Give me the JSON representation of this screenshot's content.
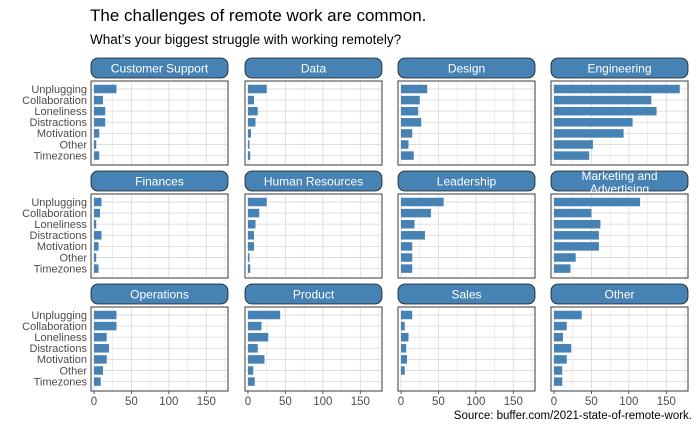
{
  "title": "The challenges of remote work are common.",
  "subtitle": "What’s your biggest struggle with working remotely?",
  "caption": "Source: buffer.com/2021-state-of-remote-work.",
  "colors": {
    "bar": "#4682b4",
    "strip": "#4682b4",
    "grid": "#dddddd"
  },
  "chart_data": {
    "type": "bar",
    "orientation": "horizontal",
    "categories": [
      "Unplugging",
      "Collaboration",
      "Loneliness",
      "Distractions",
      "Motivation",
      "Other",
      "Timezones"
    ],
    "xlim": [
      0,
      175
    ],
    "xticks": [
      0,
      50,
      100,
      150
    ],
    "grid": true,
    "panels": [
      {
        "name": "Customer Support",
        "values": [
          30,
          12,
          15,
          15,
          7,
          3,
          7
        ]
      },
      {
        "name": "Data",
        "values": [
          25,
          8,
          13,
          10,
          4,
          2,
          3
        ]
      },
      {
        "name": "Design",
        "values": [
          35,
          25,
          23,
          27,
          15,
          10,
          17
        ]
      },
      {
        "name": "Engineering",
        "values": [
          168,
          130,
          137,
          105,
          93,
          52,
          47
        ]
      },
      {
        "name": "Finances",
        "values": [
          10,
          8,
          3,
          10,
          6,
          3,
          6
        ]
      },
      {
        "name": "Human Resources",
        "values": [
          25,
          15,
          10,
          8,
          8,
          2,
          3
        ]
      },
      {
        "name": "Leadership",
        "values": [
          57,
          40,
          18,
          32,
          15,
          15,
          15
        ]
      },
      {
        "name": "Marketing and Advertising",
        "values": [
          115,
          50,
          62,
          60,
          60,
          29,
          22
        ]
      },
      {
        "name": "Operations",
        "values": [
          30,
          30,
          17,
          20,
          17,
          12,
          9
        ]
      },
      {
        "name": "Product",
        "values": [
          43,
          18,
          27,
          13,
          22,
          7,
          9
        ]
      },
      {
        "name": "Sales",
        "values": [
          15,
          5,
          10,
          7,
          8,
          5,
          0
        ]
      },
      {
        "name": "Other",
        "values": [
          37,
          17,
          12,
          23,
          17,
          11,
          11
        ]
      }
    ]
  }
}
